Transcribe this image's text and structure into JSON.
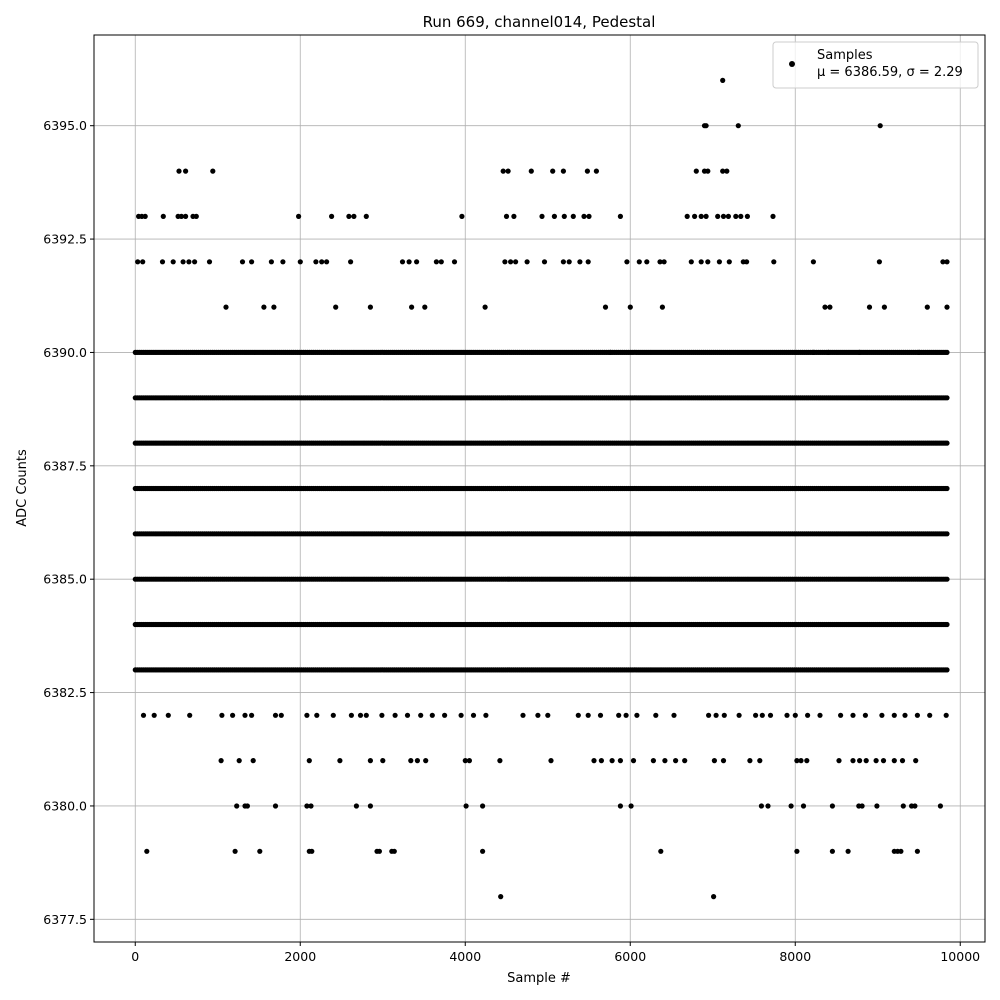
{
  "chart_data": {
    "type": "scatter",
    "title": "Run 669, channel014, Pedestal",
    "xlabel": "Sample #",
    "ylabel": "ADC Counts",
    "xlim": [
      -500,
      10300
    ],
    "ylim": [
      6377.0,
      6397.0
    ],
    "xticks": [
      0,
      2000,
      4000,
      6000,
      8000,
      10000
    ],
    "xtick_labels": [
      "0",
      "2000",
      "4000",
      "6000",
      "8000",
      "10000"
    ],
    "yticks": [
      6377.5,
      6380.0,
      6382.5,
      6385.0,
      6387.5,
      6390.0,
      6392.5,
      6395.0
    ],
    "ytick_labels": [
      "6377.5",
      "6380.0",
      "6382.5",
      "6385.0",
      "6387.5",
      "6390.0",
      "6392.5",
      "6395.0"
    ],
    "grid": true,
    "legend": {
      "placement": "top-right",
      "entries": [
        {
          "name": "Samples",
          "stat": "μ = 6386.59, σ = 2.29"
        }
      ]
    },
    "marker_color": "#000000",
    "series": [
      {
        "name": "Samples",
        "x_range": [
          0,
          9840
        ],
        "levels": [
          {
            "y": 6386,
            "ranges": [
              [
                0,
                9840
              ]
            ]
          },
          {
            "y": 6387,
            "ranges": [
              [
                0,
                9840
              ]
            ]
          },
          {
            "y": 6388,
            "ranges": [
              [
                0,
                9840
              ]
            ]
          },
          {
            "y": 6385,
            "ranges": [
              [
                0,
                9840
              ]
            ]
          },
          {
            "y": 6389,
            "ranges": [
              [
                0,
                9840
              ]
            ]
          },
          {
            "y": 6384,
            "ranges": [
              [
                0,
                9840
              ]
            ]
          },
          {
            "y": 6383,
            "ranges": [
              [
                0,
                9840
              ]
            ]
          },
          {
            "y": 6390,
            "ranges": [
              [
                0,
                9840
              ]
            ]
          }
        ],
        "points": [
          [
            7120,
            6396
          ],
          [
            6900,
            6395
          ],
          [
            6920,
            6395
          ],
          [
            7310,
            6395
          ],
          [
            9030,
            6395
          ],
          [
            530,
            6394
          ],
          [
            610,
            6394
          ],
          [
            940,
            6394
          ],
          [
            4460,
            6394
          ],
          [
            4520,
            6394
          ],
          [
            4800,
            6394
          ],
          [
            5060,
            6394
          ],
          [
            5190,
            6394
          ],
          [
            5480,
            6394
          ],
          [
            5590,
            6394
          ],
          [
            6800,
            6394
          ],
          [
            6900,
            6394
          ],
          [
            6940,
            6394
          ],
          [
            7120,
            6394
          ],
          [
            7170,
            6394
          ],
          [
            40,
            6393
          ],
          [
            80,
            6393
          ],
          [
            120,
            6393
          ],
          [
            340,
            6393
          ],
          [
            520,
            6393
          ],
          [
            560,
            6393
          ],
          [
            610,
            6393
          ],
          [
            700,
            6393
          ],
          [
            740,
            6393
          ],
          [
            1980,
            6393
          ],
          [
            2380,
            6393
          ],
          [
            2590,
            6393
          ],
          [
            2650,
            6393
          ],
          [
            2800,
            6393
          ],
          [
            3960,
            6393
          ],
          [
            4500,
            6393
          ],
          [
            4590,
            6393
          ],
          [
            4930,
            6393
          ],
          [
            5080,
            6393
          ],
          [
            5200,
            6393
          ],
          [
            5310,
            6393
          ],
          [
            5440,
            6393
          ],
          [
            5500,
            6393
          ],
          [
            5880,
            6393
          ],
          [
            6690,
            6393
          ],
          [
            6780,
            6393
          ],
          [
            6860,
            6393
          ],
          [
            6920,
            6393
          ],
          [
            7060,
            6393
          ],
          [
            7130,
            6393
          ],
          [
            7190,
            6393
          ],
          [
            7280,
            6393
          ],
          [
            7340,
            6393
          ],
          [
            7420,
            6393
          ],
          [
            7730,
            6393
          ],
          [
            30,
            6392
          ],
          [
            90,
            6392
          ],
          [
            330,
            6392
          ],
          [
            460,
            6392
          ],
          [
            580,
            6392
          ],
          [
            650,
            6392
          ],
          [
            720,
            6392
          ],
          [
            900,
            6392
          ],
          [
            1300,
            6392
          ],
          [
            1410,
            6392
          ],
          [
            1650,
            6392
          ],
          [
            1790,
            6392
          ],
          [
            2000,
            6392
          ],
          [
            2190,
            6392
          ],
          [
            2260,
            6392
          ],
          [
            2320,
            6392
          ],
          [
            2610,
            6392
          ],
          [
            3240,
            6392
          ],
          [
            3320,
            6392
          ],
          [
            3410,
            6392
          ],
          [
            3650,
            6392
          ],
          [
            3710,
            6392
          ],
          [
            3870,
            6392
          ],
          [
            4480,
            6392
          ],
          [
            4550,
            6392
          ],
          [
            4610,
            6392
          ],
          [
            4750,
            6392
          ],
          [
            4960,
            6392
          ],
          [
            5190,
            6392
          ],
          [
            5260,
            6392
          ],
          [
            5390,
            6392
          ],
          [
            5490,
            6392
          ],
          [
            5960,
            6392
          ],
          [
            6110,
            6392
          ],
          [
            6200,
            6392
          ],
          [
            6360,
            6392
          ],
          [
            6410,
            6392
          ],
          [
            6740,
            6392
          ],
          [
            6860,
            6392
          ],
          [
            6940,
            6392
          ],
          [
            7080,
            6392
          ],
          [
            7200,
            6392
          ],
          [
            7370,
            6392
          ],
          [
            7410,
            6392
          ],
          [
            7740,
            6392
          ],
          [
            8220,
            6392
          ],
          [
            9020,
            6392
          ],
          [
            9790,
            6392
          ],
          [
            9840,
            6392
          ],
          [
            1100,
            6391
          ],
          [
            1560,
            6391
          ],
          [
            1680,
            6391
          ],
          [
            2430,
            6391
          ],
          [
            2850,
            6391
          ],
          [
            3350,
            6391
          ],
          [
            3510,
            6391
          ],
          [
            4240,
            6391
          ],
          [
            5700,
            6391
          ],
          [
            6000,
            6391
          ],
          [
            6390,
            6391
          ],
          [
            8360,
            6391
          ],
          [
            8420,
            6391
          ],
          [
            8900,
            6391
          ],
          [
            9080,
            6391
          ],
          [
            9600,
            6391
          ],
          [
            9840,
            6391
          ],
          [
            5760,
            6390
          ],
          [
            8220,
            6390
          ],
          [
            8400,
            6390
          ],
          [
            8780,
            6390
          ],
          [
            9500,
            6390
          ],
          [
            100,
            6382
          ],
          [
            230,
            6382
          ],
          [
            400,
            6382
          ],
          [
            660,
            6382
          ],
          [
            1050,
            6382
          ],
          [
            1180,
            6382
          ],
          [
            1330,
            6382
          ],
          [
            1410,
            6382
          ],
          [
            1700,
            6382
          ],
          [
            1770,
            6382
          ],
          [
            2080,
            6382
          ],
          [
            2200,
            6382
          ],
          [
            2400,
            6382
          ],
          [
            2620,
            6382
          ],
          [
            2730,
            6382
          ],
          [
            2800,
            6382
          ],
          [
            2990,
            6382
          ],
          [
            3150,
            6382
          ],
          [
            3300,
            6382
          ],
          [
            3460,
            6382
          ],
          [
            3600,
            6382
          ],
          [
            3750,
            6382
          ],
          [
            3950,
            6382
          ],
          [
            4100,
            6382
          ],
          [
            4250,
            6382
          ],
          [
            4700,
            6382
          ],
          [
            4880,
            6382
          ],
          [
            5000,
            6382
          ],
          [
            5370,
            6382
          ],
          [
            5490,
            6382
          ],
          [
            5640,
            6382
          ],
          [
            5860,
            6382
          ],
          [
            5950,
            6382
          ],
          [
            6080,
            6382
          ],
          [
            6310,
            6382
          ],
          [
            6530,
            6382
          ],
          [
            6950,
            6382
          ],
          [
            7040,
            6382
          ],
          [
            7140,
            6382
          ],
          [
            7320,
            6382
          ],
          [
            7520,
            6382
          ],
          [
            7600,
            6382
          ],
          [
            7700,
            6382
          ],
          [
            7900,
            6382
          ],
          [
            8000,
            6382
          ],
          [
            8150,
            6382
          ],
          [
            8300,
            6382
          ],
          [
            8550,
            6382
          ],
          [
            8700,
            6382
          ],
          [
            8850,
            6382
          ],
          [
            9050,
            6382
          ],
          [
            9200,
            6382
          ],
          [
            9330,
            6382
          ],
          [
            9480,
            6382
          ],
          [
            9630,
            6382
          ],
          [
            9830,
            6382
          ],
          [
            1040,
            6381
          ],
          [
            1260,
            6381
          ],
          [
            1430,
            6381
          ],
          [
            2110,
            6381
          ],
          [
            2480,
            6381
          ],
          [
            2850,
            6381
          ],
          [
            3000,
            6381
          ],
          [
            3340,
            6381
          ],
          [
            3420,
            6381
          ],
          [
            3520,
            6381
          ],
          [
            4000,
            6381
          ],
          [
            4050,
            6381
          ],
          [
            4420,
            6381
          ],
          [
            5040,
            6381
          ],
          [
            5560,
            6381
          ],
          [
            5650,
            6381
          ],
          [
            5780,
            6381
          ],
          [
            5880,
            6381
          ],
          [
            6040,
            6381
          ],
          [
            6280,
            6381
          ],
          [
            6420,
            6381
          ],
          [
            6550,
            6381
          ],
          [
            6660,
            6381
          ],
          [
            7020,
            6381
          ],
          [
            7130,
            6381
          ],
          [
            7450,
            6381
          ],
          [
            7570,
            6381
          ],
          [
            8020,
            6381
          ],
          [
            8070,
            6381
          ],
          [
            8140,
            6381
          ],
          [
            8530,
            6381
          ],
          [
            8700,
            6381
          ],
          [
            8780,
            6381
          ],
          [
            8860,
            6381
          ],
          [
            8980,
            6381
          ],
          [
            9070,
            6381
          ],
          [
            9200,
            6381
          ],
          [
            9300,
            6381
          ],
          [
            9460,
            6381
          ],
          [
            1230,
            6380
          ],
          [
            1330,
            6380
          ],
          [
            1360,
            6380
          ],
          [
            1700,
            6380
          ],
          [
            2080,
            6380
          ],
          [
            2130,
            6380
          ],
          [
            2680,
            6380
          ],
          [
            2850,
            6380
          ],
          [
            4010,
            6380
          ],
          [
            4210,
            6380
          ],
          [
            5880,
            6380
          ],
          [
            6010,
            6380
          ],
          [
            7590,
            6380
          ],
          [
            7670,
            6380
          ],
          [
            7950,
            6380
          ],
          [
            8100,
            6380
          ],
          [
            8450,
            6380
          ],
          [
            8770,
            6380
          ],
          [
            8810,
            6380
          ],
          [
            8990,
            6380
          ],
          [
            9310,
            6380
          ],
          [
            9410,
            6380
          ],
          [
            9450,
            6380
          ],
          [
            9760,
            6380
          ],
          [
            140,
            6379
          ],
          [
            1210,
            6379
          ],
          [
            1510,
            6379
          ],
          [
            2110,
            6379
          ],
          [
            2140,
            6379
          ],
          [
            2930,
            6379
          ],
          [
            2960,
            6379
          ],
          [
            3110,
            6379
          ],
          [
            3140,
            6379
          ],
          [
            4210,
            6379
          ],
          [
            6370,
            6379
          ],
          [
            8020,
            6379
          ],
          [
            8450,
            6379
          ],
          [
            8640,
            6379
          ],
          [
            9200,
            6379
          ],
          [
            9240,
            6379
          ],
          [
            9280,
            6379
          ],
          [
            9480,
            6379
          ],
          [
            4430,
            6378
          ],
          [
            7010,
            6378
          ]
        ]
      }
    ]
  }
}
